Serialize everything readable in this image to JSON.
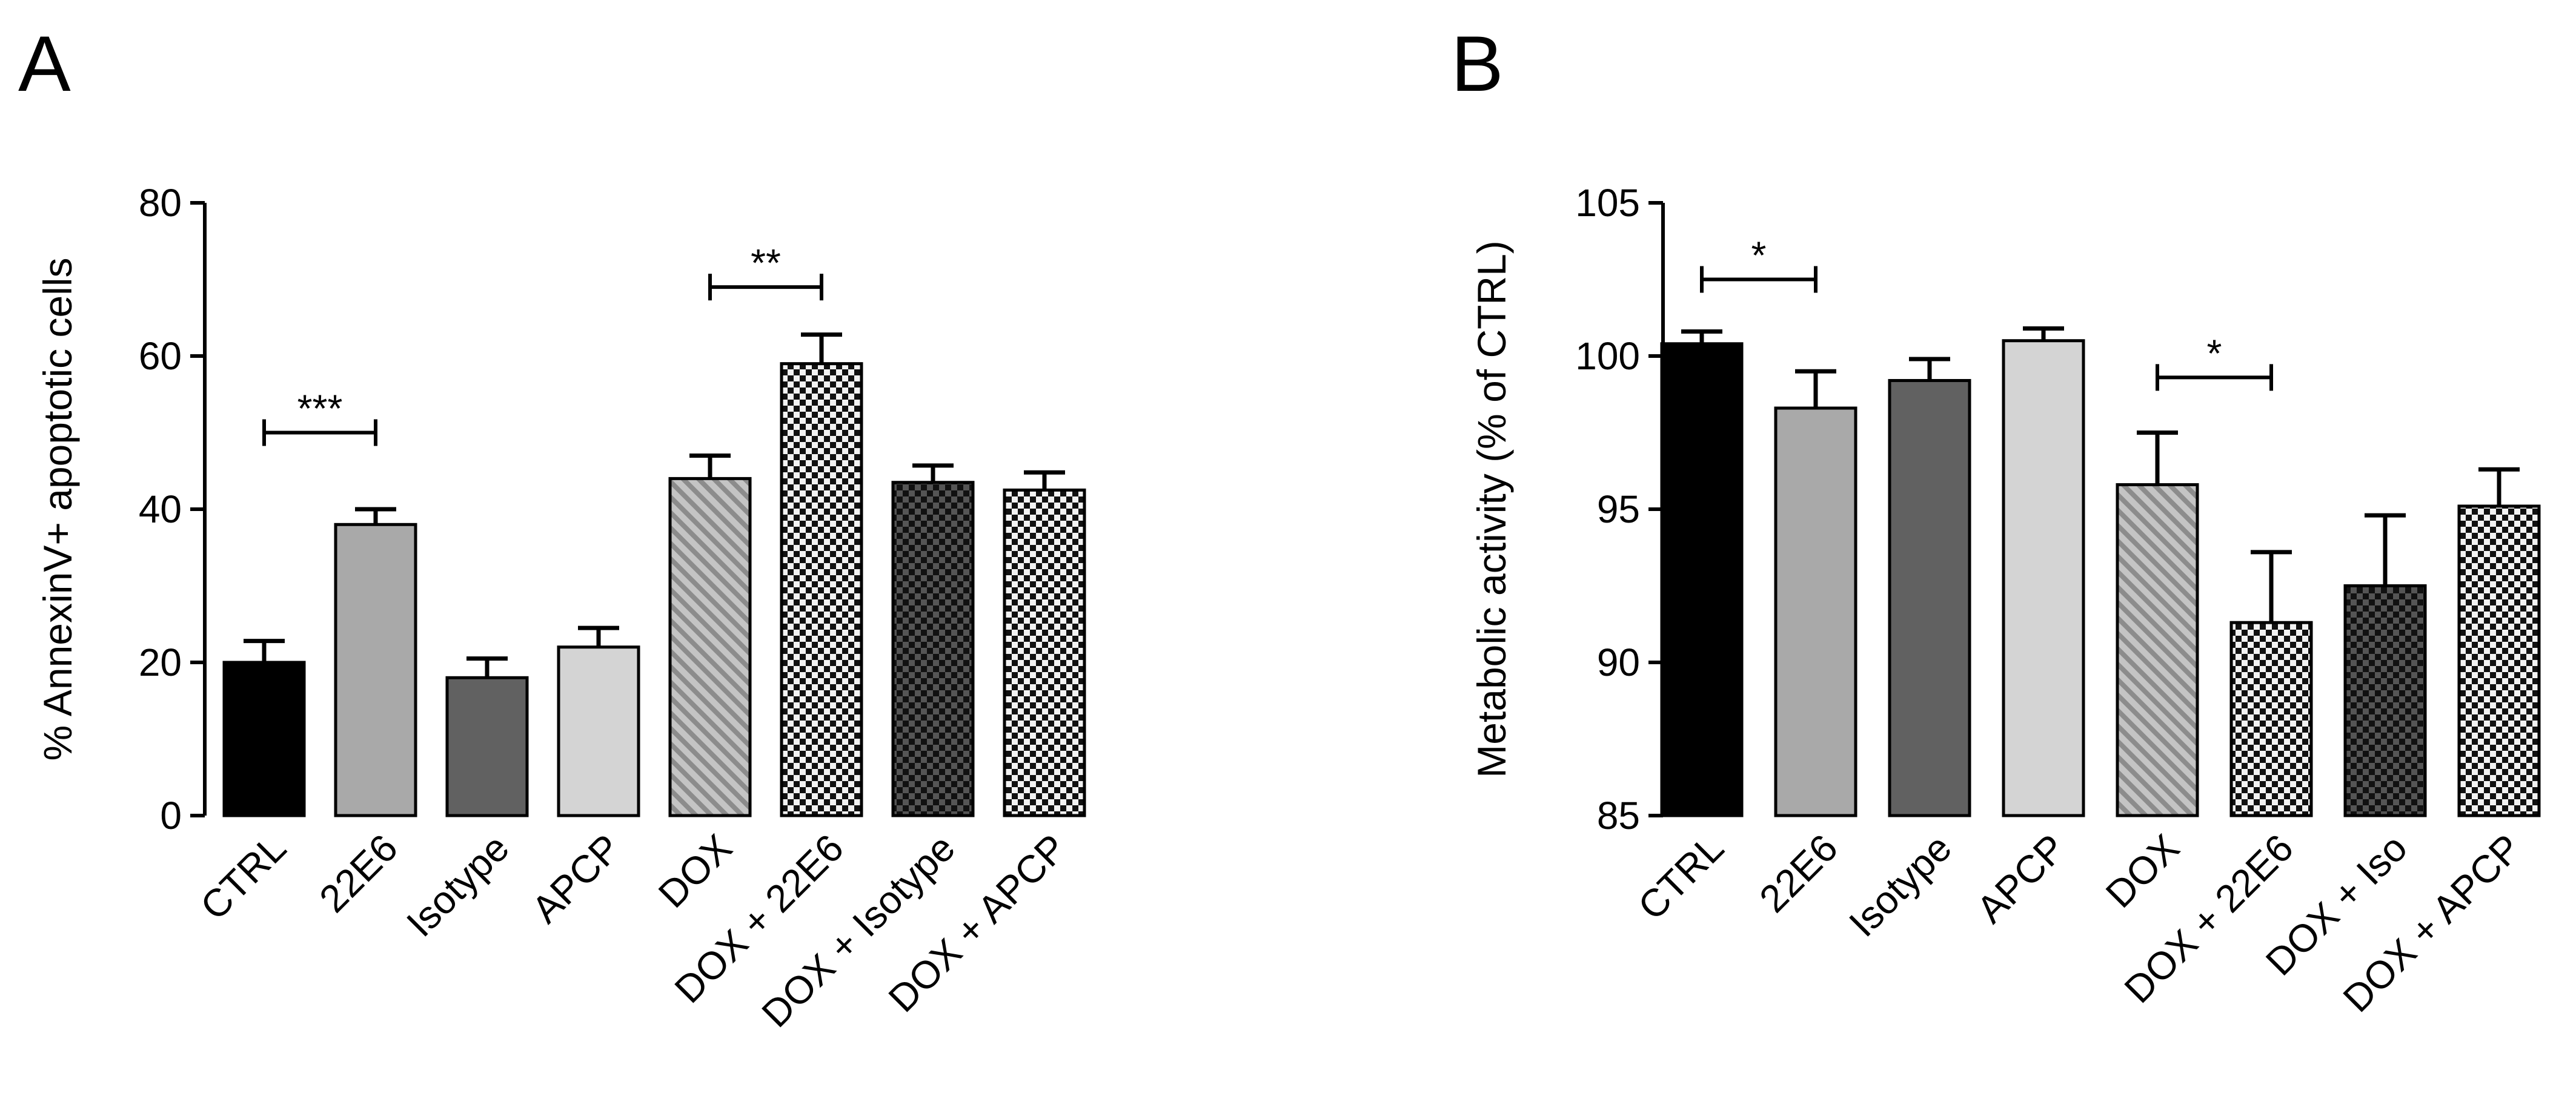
{
  "chart_data": [
    {
      "panel_label": "A",
      "type": "bar",
      "title": "",
      "xlabel": "",
      "ylabel": "% AnnexinV+ apoptotic cells",
      "ylim": [
        0,
        80
      ],
      "yticks": [
        0,
        20,
        40,
        60,
        80
      ],
      "grid": false,
      "categories": [
        "CTRL",
        "22E6",
        "Isotype",
        "APCP",
        "DOX",
        "DOX + 22E6",
        "DOX + Isotype",
        "DOX + APCP"
      ],
      "values": [
        20,
        38,
        18,
        22,
        44,
        59,
        43.5,
        42.5
      ],
      "errors": [
        2.8,
        2,
        2.5,
        2.5,
        3,
        3.8,
        2.2,
        2.3
      ],
      "fills": [
        "black",
        "lightgray",
        "darkgray",
        "palegray",
        "hatch",
        "checker",
        "checker-dark",
        "checker"
      ],
      "significance": [
        {
          "from": 0,
          "to": 1,
          "y": 50,
          "label": "***"
        },
        {
          "from": 4,
          "to": 5,
          "y": 69,
          "label": "**"
        }
      ]
    },
    {
      "panel_label": "B",
      "type": "bar",
      "title": "",
      "xlabel": "",
      "ylabel": "Metabolic activity (% of CTRL)",
      "ylim": [
        85,
        105
      ],
      "yticks": [
        85,
        90,
        95,
        100,
        105
      ],
      "grid": false,
      "categories": [
        "CTRL",
        "22E6",
        "Isotype",
        "APCP",
        "DOX",
        "DOX + 22E6",
        "DOX + Iso",
        "DOX + APCP"
      ],
      "values": [
        100.4,
        98.3,
        99.2,
        100.5,
        95.8,
        91.3,
        92.5,
        95.1
      ],
      "errors": [
        0.4,
        1.2,
        0.7,
        0.4,
        1.7,
        2.3,
        2.3,
        1.2
      ],
      "fills": [
        "black",
        "lightgray",
        "darkgray",
        "palegray",
        "hatch",
        "checker",
        "checker-dark",
        "checker"
      ],
      "significance": [
        {
          "from": 0,
          "to": 1,
          "y": 102.5,
          "label": "*"
        },
        {
          "from": 4,
          "to": 5,
          "y": 99.3,
          "label": "*"
        }
      ]
    }
  ]
}
